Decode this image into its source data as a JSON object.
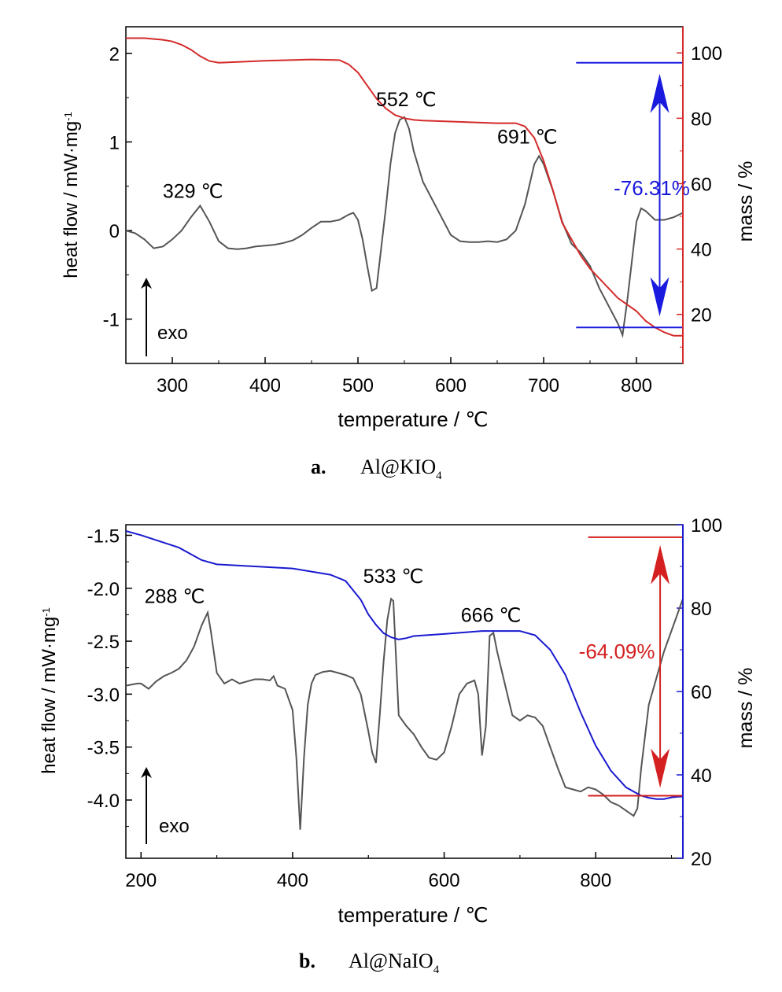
{
  "chart_data": [
    {
      "type": "line",
      "panel_label": "a.",
      "panel_title_main": "Al@KIO",
      "panel_title_sub": "4",
      "xlabel": "temperature / ℃",
      "ylabel_left": "heat flow / mW·mg",
      "ylabel_left_sup": "-1",
      "ylabel_right": "mass / %",
      "xlim": [
        250,
        850
      ],
      "ylim_left": [
        -1.5,
        2.3
      ],
      "ylim_right": [
        5,
        108
      ],
      "x_ticks": [
        300,
        400,
        500,
        600,
        700,
        800
      ],
      "y_left_ticks": [
        -1,
        0,
        1,
        2
      ],
      "y_right_ticks": [
        20,
        40,
        60,
        80,
        100
      ],
      "y_left_tick_labels": [
        "-1",
        "0",
        "1",
        "2"
      ],
      "y_right_tick_labels": [
        "20",
        "40",
        "60",
        "80",
        "100"
      ],
      "x_tick_labels": [
        "300",
        "400",
        "500",
        "600",
        "700",
        "800"
      ],
      "colors": {
        "heat_flow": "#555555",
        "mass": "#d42a2a",
        "right_axis": "#d42a2a",
        "annotation": "#1a1adf"
      },
      "series": [
        {
          "axis": "left",
          "x": [
            250,
            260,
            270,
            280,
            290,
            300,
            310,
            320,
            330,
            340,
            350,
            360,
            370,
            380,
            390,
            400,
            410,
            420,
            430,
            440,
            450,
            460,
            470,
            480,
            490,
            495,
            500,
            505,
            510,
            515,
            520,
            525,
            530,
            535,
            540,
            545,
            550,
            555,
            560,
            570,
            580,
            590,
            600,
            610,
            620,
            630,
            640,
            650,
            660,
            670,
            680,
            690,
            695,
            700,
            710,
            720,
            730,
            740,
            750,
            760,
            770,
            780,
            785,
            790,
            800,
            805,
            810,
            820,
            830,
            840,
            850
          ],
          "values": [
            0.0,
            -0.03,
            -0.1,
            -0.2,
            -0.18,
            -0.1,
            0.0,
            0.15,
            0.28,
            0.1,
            -0.12,
            -0.2,
            -0.21,
            -0.2,
            -0.18,
            -0.17,
            -0.16,
            -0.14,
            -0.11,
            -0.05,
            0.03,
            0.1,
            0.1,
            0.12,
            0.18,
            0.2,
            0.12,
            -0.1,
            -0.4,
            -0.68,
            -0.65,
            -0.2,
            0.25,
            0.75,
            1.1,
            1.25,
            1.28,
            1.15,
            0.9,
            0.55,
            0.35,
            0.15,
            -0.05,
            -0.12,
            -0.13,
            -0.13,
            -0.12,
            -0.13,
            -0.1,
            0.0,
            0.3,
            0.75,
            0.84,
            0.75,
            0.45,
            0.1,
            -0.15,
            -0.25,
            -0.4,
            -0.65,
            -0.85,
            -1.05,
            -1.18,
            -0.8,
            0.1,
            0.25,
            0.22,
            0.12,
            0.12,
            0.15,
            0.2
          ]
        },
        {
          "axis": "right",
          "x": [
            250,
            270,
            290,
            300,
            310,
            320,
            330,
            340,
            350,
            400,
            450,
            480,
            490,
            500,
            510,
            520,
            530,
            540,
            550,
            560,
            570,
            600,
            650,
            670,
            680,
            690,
            700,
            710,
            720,
            730,
            740,
            750,
            760,
            770,
            780,
            790,
            800,
            810,
            820,
            830,
            840,
            850
          ],
          "values": [
            104.5,
            104.5,
            104,
            103.5,
            102.5,
            101,
            99,
            97.5,
            97,
            97.6,
            98,
            97.8,
            96.5,
            94,
            90,
            86,
            83,
            81,
            80,
            79.5,
            79.3,
            79,
            78.5,
            78.5,
            77.5,
            74,
            67,
            58,
            48,
            43,
            38,
            34,
            31,
            28,
            25,
            23,
            21,
            18,
            16,
            14.5,
            13.5,
            13.5
          ]
        }
      ],
      "peak_labels": [
        {
          "x": 329,
          "y": 0.28,
          "text": "329 ℃"
        },
        {
          "x": 552,
          "y": 1.28,
          "text": "552 ℃"
        },
        {
          "x": 691,
          "y": 0.84,
          "text": "691 ℃"
        }
      ],
      "arrow_label": "exo",
      "mass_loss": {
        "text": "-76.31%",
        "x": 825,
        "top_mass": 97,
        "bottom_mass": 16,
        "line_x_start": 735,
        "line_x_end": 850
      }
    },
    {
      "type": "line",
      "panel_label": "b.",
      "panel_title_main": "Al@NaIO",
      "panel_title_sub": "4",
      "xlabel": "temperature / ℃",
      "ylabel_left": "heat flow / mW·mg",
      "ylabel_left_sup": "-1",
      "ylabel_right": "mass / %",
      "xlim": [
        180,
        915
      ],
      "ylim_left": [
        -4.55,
        -1.4
      ],
      "ylim_right": [
        20,
        100
      ],
      "x_ticks": [
        200,
        400,
        600,
        800
      ],
      "y_left_ticks": [
        -4.0,
        -3.5,
        -3.0,
        -2.5,
        -2.0,
        -1.5
      ],
      "y_right_ticks": [
        20,
        40,
        60,
        80,
        100
      ],
      "y_left_tick_labels": [
        "-4.0",
        "-3.5",
        "-3.0",
        "-2.5",
        "-2.0",
        "-1.5"
      ],
      "y_right_tick_labels": [
        "20",
        "40",
        "60",
        "80",
        "100"
      ],
      "x_tick_labels": [
        "200",
        "400",
        "600",
        "800"
      ],
      "colors": {
        "heat_flow": "#555555",
        "mass": "#1a1acf",
        "right_axis": "#1a1acf",
        "annotation": "#d42020"
      },
      "series": [
        {
          "axis": "left",
          "x": [
            180,
            195,
            200,
            210,
            220,
            230,
            240,
            250,
            260,
            270,
            280,
            288,
            292,
            300,
            310,
            320,
            330,
            340,
            350,
            360,
            370,
            375,
            380,
            390,
            400,
            405,
            410,
            415,
            420,
            425,
            430,
            440,
            450,
            460,
            470,
            480,
            490,
            500,
            505,
            510,
            515,
            520,
            525,
            530,
            533,
            540,
            550,
            560,
            570,
            580,
            590,
            600,
            610,
            620,
            630,
            640,
            645,
            650,
            655,
            660,
            665,
            670,
            680,
            690,
            700,
            710,
            720,
            730,
            740,
            750,
            760,
            770,
            780,
            790,
            800,
            810,
            820,
            830,
            840,
            850,
            855,
            860,
            870,
            880,
            890,
            900,
            910,
            915
          ],
          "values": [
            -2.92,
            -2.9,
            -2.9,
            -2.95,
            -2.88,
            -2.83,
            -2.8,
            -2.76,
            -2.68,
            -2.55,
            -2.35,
            -2.23,
            -2.4,
            -2.8,
            -2.9,
            -2.86,
            -2.9,
            -2.88,
            -2.86,
            -2.86,
            -2.87,
            -2.83,
            -2.92,
            -2.95,
            -3.15,
            -3.6,
            -4.28,
            -3.6,
            -3.1,
            -2.9,
            -2.82,
            -2.79,
            -2.78,
            -2.8,
            -2.82,
            -2.85,
            -3.0,
            -3.35,
            -3.55,
            -3.65,
            -3.2,
            -2.7,
            -2.3,
            -2.1,
            -2.12,
            -3.2,
            -3.3,
            -3.38,
            -3.5,
            -3.6,
            -3.62,
            -3.55,
            -3.3,
            -3.0,
            -2.9,
            -2.87,
            -3.0,
            -3.58,
            -3.3,
            -2.45,
            -2.42,
            -2.6,
            -2.9,
            -3.2,
            -3.25,
            -3.2,
            -3.22,
            -3.3,
            -3.5,
            -3.7,
            -3.88,
            -3.9,
            -3.92,
            -3.88,
            -3.9,
            -3.95,
            -4.02,
            -4.05,
            -4.1,
            -4.15,
            -4.08,
            -3.7,
            -3.1,
            -2.85,
            -2.6,
            -2.4,
            -2.2,
            -2.1
          ]
        },
        {
          "axis": "right",
          "x": [
            180,
            200,
            250,
            280,
            300,
            350,
            400,
            450,
            470,
            490,
            500,
            510,
            520,
            530,
            540,
            550,
            560,
            600,
            650,
            700,
            720,
            740,
            760,
            780,
            800,
            820,
            840,
            860,
            870,
            880,
            890,
            900,
            910,
            915
          ],
          "values": [
            98.5,
            97.5,
            94.5,
            91.5,
            90.5,
            90,
            89.5,
            88,
            86.5,
            82,
            78.5,
            76,
            74,
            73,
            72.5,
            72.8,
            73.3,
            73.8,
            74.5,
            74.5,
            73.5,
            70,
            64,
            55,
            47,
            41,
            37,
            35,
            34.5,
            34.2,
            34.2,
            34.6,
            34.8,
            34.8
          ]
        }
      ],
      "peak_labels": [
        {
          "x": 288,
          "y": -2.23,
          "text": "288 ℃"
        },
        {
          "x": 533,
          "y": -2.1,
          "text": "533 ℃"
        },
        {
          "x": 666,
          "y": -2.42,
          "text": "666 ℃"
        }
      ],
      "arrow_label": "exo",
      "mass_loss": {
        "text": "-64.09%",
        "x": 885,
        "top_mass": 97,
        "bottom_mass": 35,
        "line_x_start": 790,
        "line_x_end": 915
      }
    }
  ]
}
